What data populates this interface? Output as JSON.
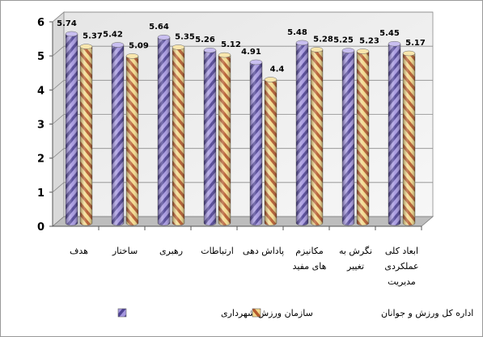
{
  "chart_data": {
    "type": "bar",
    "style": "3d-cylinder",
    "categories": [
      "هدف",
      "ساختار",
      "رهبری",
      "ارتباطات",
      "پاداش دهی",
      "مکانیزم های مفید",
      "نگرش به تغییر",
      "ابعاد کلی عملکردی مدیریت"
    ],
    "category_lines": [
      [
        "هدف"
      ],
      [
        "ساختار"
      ],
      [
        "رهبری"
      ],
      [
        "ارتباطات"
      ],
      [
        "پاداش دهی"
      ],
      [
        "مکانیزم",
        "های مفید"
      ],
      [
        "نگرش به",
        "تغییر"
      ],
      [
        "ابعاد کلی",
        "عملکردی",
        "مدیریت"
      ]
    ],
    "series": [
      {
        "name": "سازمان ورزش شهرداری",
        "values": [
          5.74,
          5.42,
          5.64,
          5.26,
          4.91,
          5.48,
          5.25,
          5.45
        ],
        "labels": [
          "5.74",
          "5.42",
          "5.64",
          "5.26",
          "4.91",
          "5.48",
          "5.25",
          "5.45"
        ],
        "color": "#9b8bd6",
        "stripe": "#4b3f8c"
      },
      {
        "name": "اداره کل ورزش و جوانان",
        "values": [
          5.37,
          5.09,
          5.35,
          5.12,
          4.4,
          5.28,
          5.23,
          5.17
        ],
        "labels": [
          "5.37",
          "5.09",
          "5.35",
          "5.12",
          "4.4",
          "5.28",
          "5.23",
          "5.17"
        ],
        "color": "#f2d483",
        "stripe": "#b0512a"
      }
    ],
    "ylim": [
      0,
      6
    ],
    "yticks": [
      "0",
      "1",
      "2",
      "3",
      "4",
      "5",
      "6"
    ],
    "grid": true,
    "legend_position": "bottom"
  }
}
